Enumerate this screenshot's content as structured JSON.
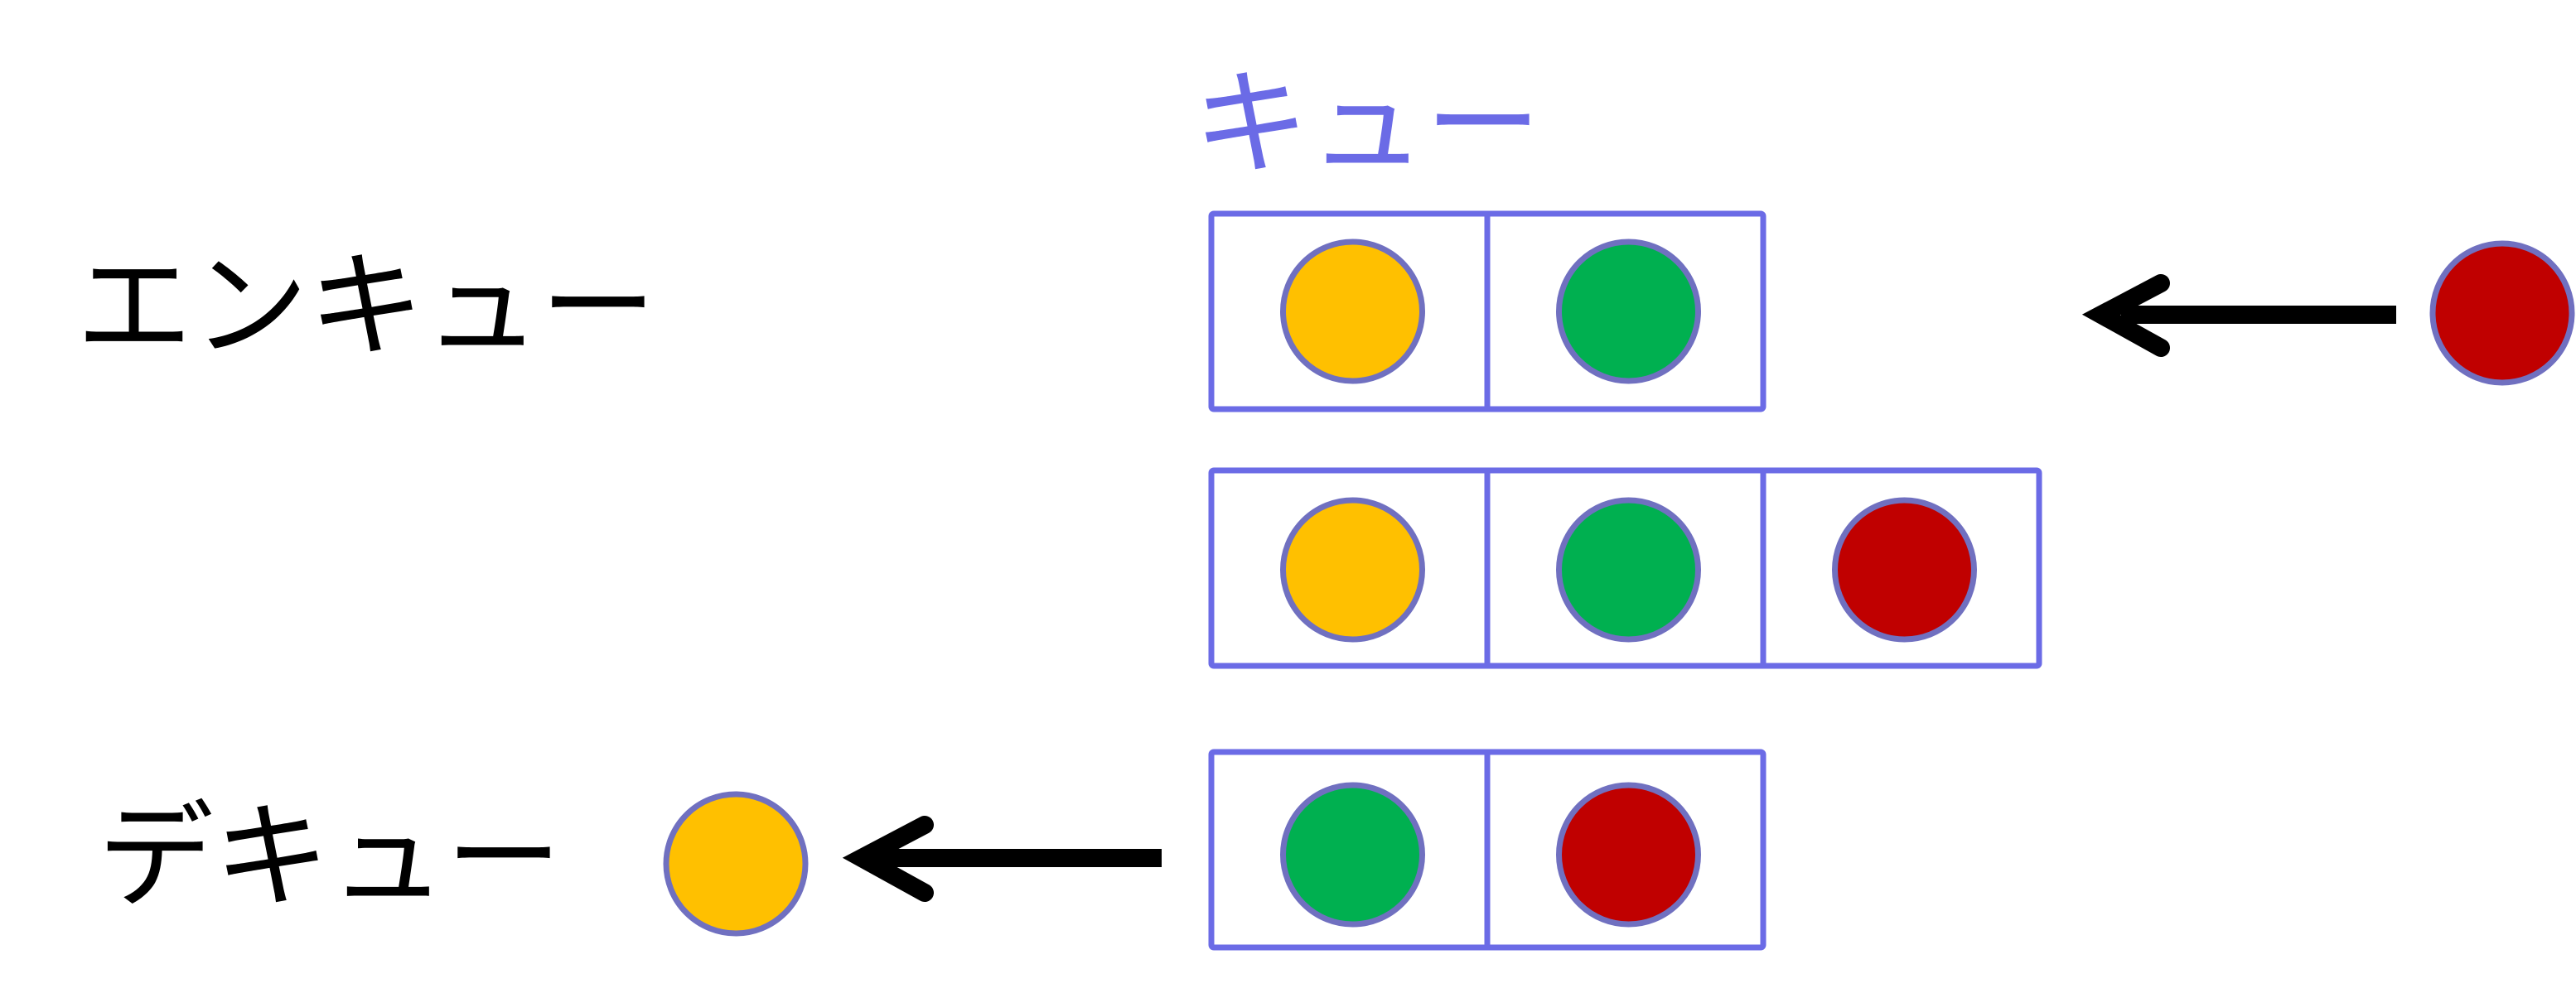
{
  "labels": {
    "queue": "キュー",
    "enqueue": "エンキュー",
    "dequeue": "デキュー"
  },
  "colors": {
    "queue_outline": "#6b6be6",
    "circle_outline": "#7070c0",
    "yellow": "#ffc000",
    "green": "#00b050",
    "red": "#c00000",
    "arrow": "#000000",
    "text": "#000000"
  },
  "rows": [
    {
      "name": "enqueue-before",
      "cells": [
        "yellow",
        "green"
      ]
    },
    {
      "name": "enqueue-after",
      "cells": [
        "yellow",
        "green",
        "red"
      ]
    },
    {
      "name": "dequeue-after",
      "cells": [
        "green",
        "red"
      ]
    }
  ],
  "incoming_item": "red",
  "outgoing_item": "yellow"
}
